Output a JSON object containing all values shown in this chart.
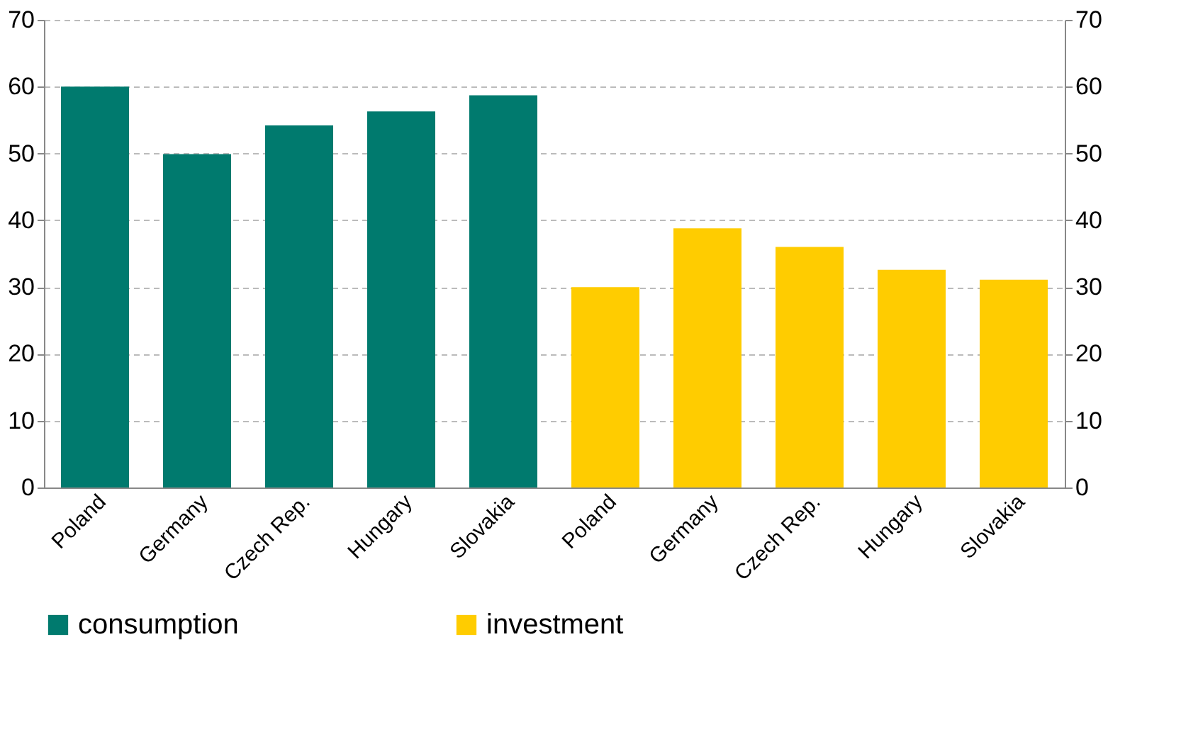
{
  "chart_data": {
    "type": "bar",
    "categories": [
      "Poland",
      "Germany",
      "Czech Rep.",
      "Hungary",
      "Slovakia",
      "Poland",
      "Germany",
      "Czech Rep.",
      "Hungary",
      "Slovakia"
    ],
    "series": [
      {
        "name": "consumption",
        "color": "#007a6e",
        "values": [
          60,
          49.9,
          54.2,
          56.3,
          58.7,
          null,
          null,
          null,
          null,
          null
        ]
      },
      {
        "name": "investment",
        "color": "#ffcc00",
        "values": [
          null,
          null,
          null,
          null,
          null,
          30,
          38.8,
          36,
          32.6,
          31.1
        ]
      }
    ],
    "ylim": [
      0,
      70
    ],
    "yticks": [
      0,
      10,
      20,
      30,
      40,
      50,
      60,
      70
    ],
    "y2lim": [
      0,
      70
    ],
    "y2ticks": [
      0,
      10,
      20,
      30,
      40,
      50,
      60,
      70
    ],
    "grid": "y",
    "legend": "bottom"
  }
}
